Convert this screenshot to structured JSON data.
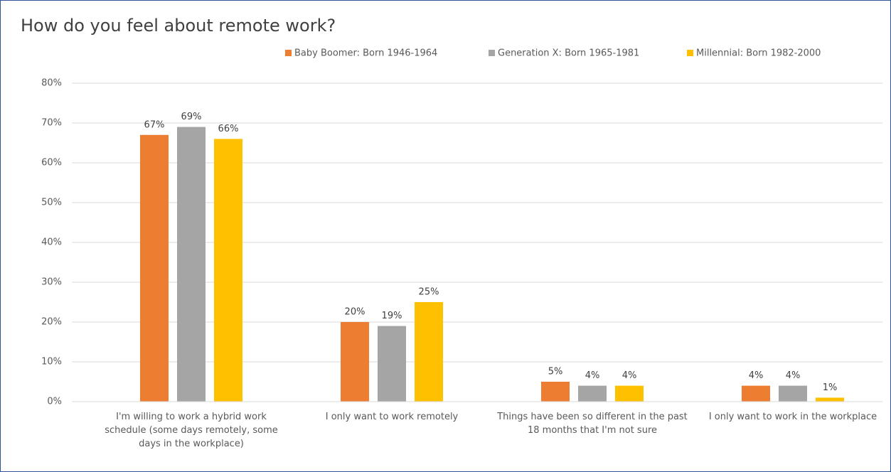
{
  "chart_data": {
    "type": "bar",
    "title": "How do you feel about remote work?",
    "categories": [
      "I'm willing to work a hybrid work schedule (some days remotely, some days in the workplace)",
      "I only want to work remotely",
      "Things have been so different in the past 18 months that I'm not sure",
      "I only want to work in the workplace"
    ],
    "series": [
      {
        "name": "Baby Boomer: Born 1946-1964",
        "color": "#ED7D31",
        "values": [
          67,
          20,
          5,
          4
        ],
        "value_labels": [
          "67%",
          "20%",
          "5%",
          "4%"
        ]
      },
      {
        "name": "Generation X: Born 1965-1981",
        "color": "#A5A5A5",
        "values": [
          69,
          19,
          4,
          4
        ],
        "value_labels": [
          "69%",
          "19%",
          "4%",
          "4%"
        ]
      },
      {
        "name": "Millennial: Born 1982-2000",
        "color": "#FFC000",
        "values": [
          66,
          25,
          4,
          1
        ],
        "value_labels": [
          "66%",
          "25%",
          "4%",
          "1%"
        ]
      }
    ],
    "ylim": [
      0,
      80
    ],
    "yticks": [
      {
        "value": 0,
        "label": "0%"
      },
      {
        "value": 10,
        "label": "10%"
      },
      {
        "value": 20,
        "label": "20%"
      },
      {
        "value": 30,
        "label": "30%"
      },
      {
        "value": 40,
        "label": "40%"
      },
      {
        "value": 50,
        "label": "50%"
      },
      {
        "value": 60,
        "label": "60%"
      },
      {
        "value": 70,
        "label": "70%"
      },
      {
        "value": 80,
        "label": "80%"
      }
    ],
    "grid": true,
    "legend": "top"
  }
}
